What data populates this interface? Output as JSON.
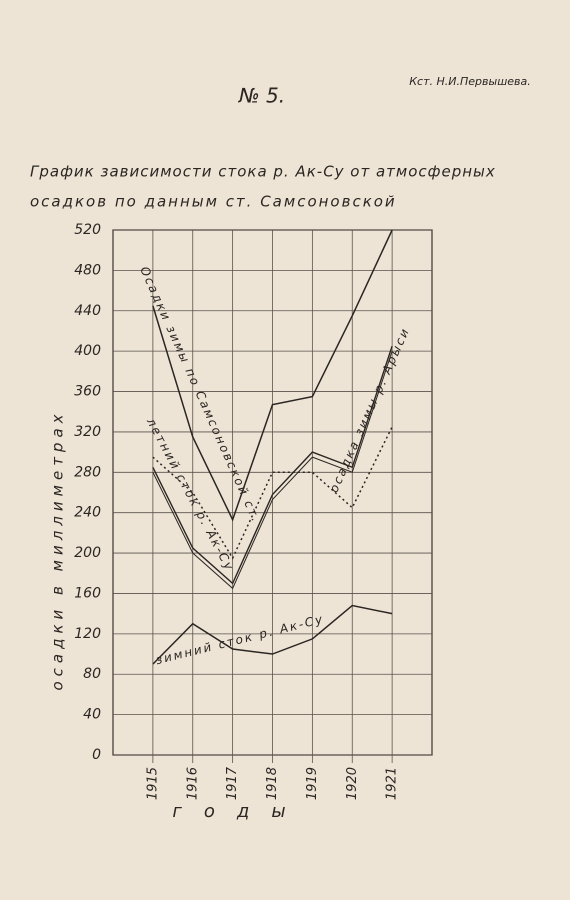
{
  "header": {
    "author": "Кст. Н.И.Первышева.",
    "number": "№ 5."
  },
  "chart_data": {
    "type": "line",
    "title": "График зависимости стока р. Ак-Су от атмосферных",
    "subtitle": "осадков по данным ст. Самсоновской",
    "y_label": "осадки в миллиметрах",
    "x_label": "годы",
    "x": [
      1915,
      1916,
      1917,
      1918,
      1919,
      1920,
      1921
    ],
    "xlim": [
      1914,
      1922
    ],
    "xticks": [
      1915,
      1916,
      1917,
      1918,
      1919,
      1920,
      1921
    ],
    "ylim": [
      0,
      520
    ],
    "yticks": [
      0,
      40,
      80,
      120,
      160,
      200,
      240,
      280,
      320,
      360,
      400,
      440,
      480,
      520
    ],
    "grid": true,
    "series": [
      {
        "name": "Осадки зимы по Самсоновской ст.",
        "color": "#2b2622",
        "style": "solid",
        "values": [
          445,
          315,
          233,
          347,
          355,
          435,
          520
        ]
      },
      {
        "name": "осадка зимы р. Арыси",
        "color": "#2b2622",
        "style": "double",
        "values": [
          285,
          205,
          170,
          258,
          300,
          285,
          405
        ]
      },
      {
        "name": "летний сток р. Ак-Су",
        "color": "#2b2622",
        "style": "dotted",
        "values": [
          295,
          260,
          195,
          280,
          280,
          245,
          325
        ]
      },
      {
        "name": "зимний сток р. Ак-Су",
        "color": "#2b2622",
        "style": "solid",
        "values": [
          90,
          130,
          105,
          100,
          115,
          148,
          140
        ]
      }
    ]
  }
}
